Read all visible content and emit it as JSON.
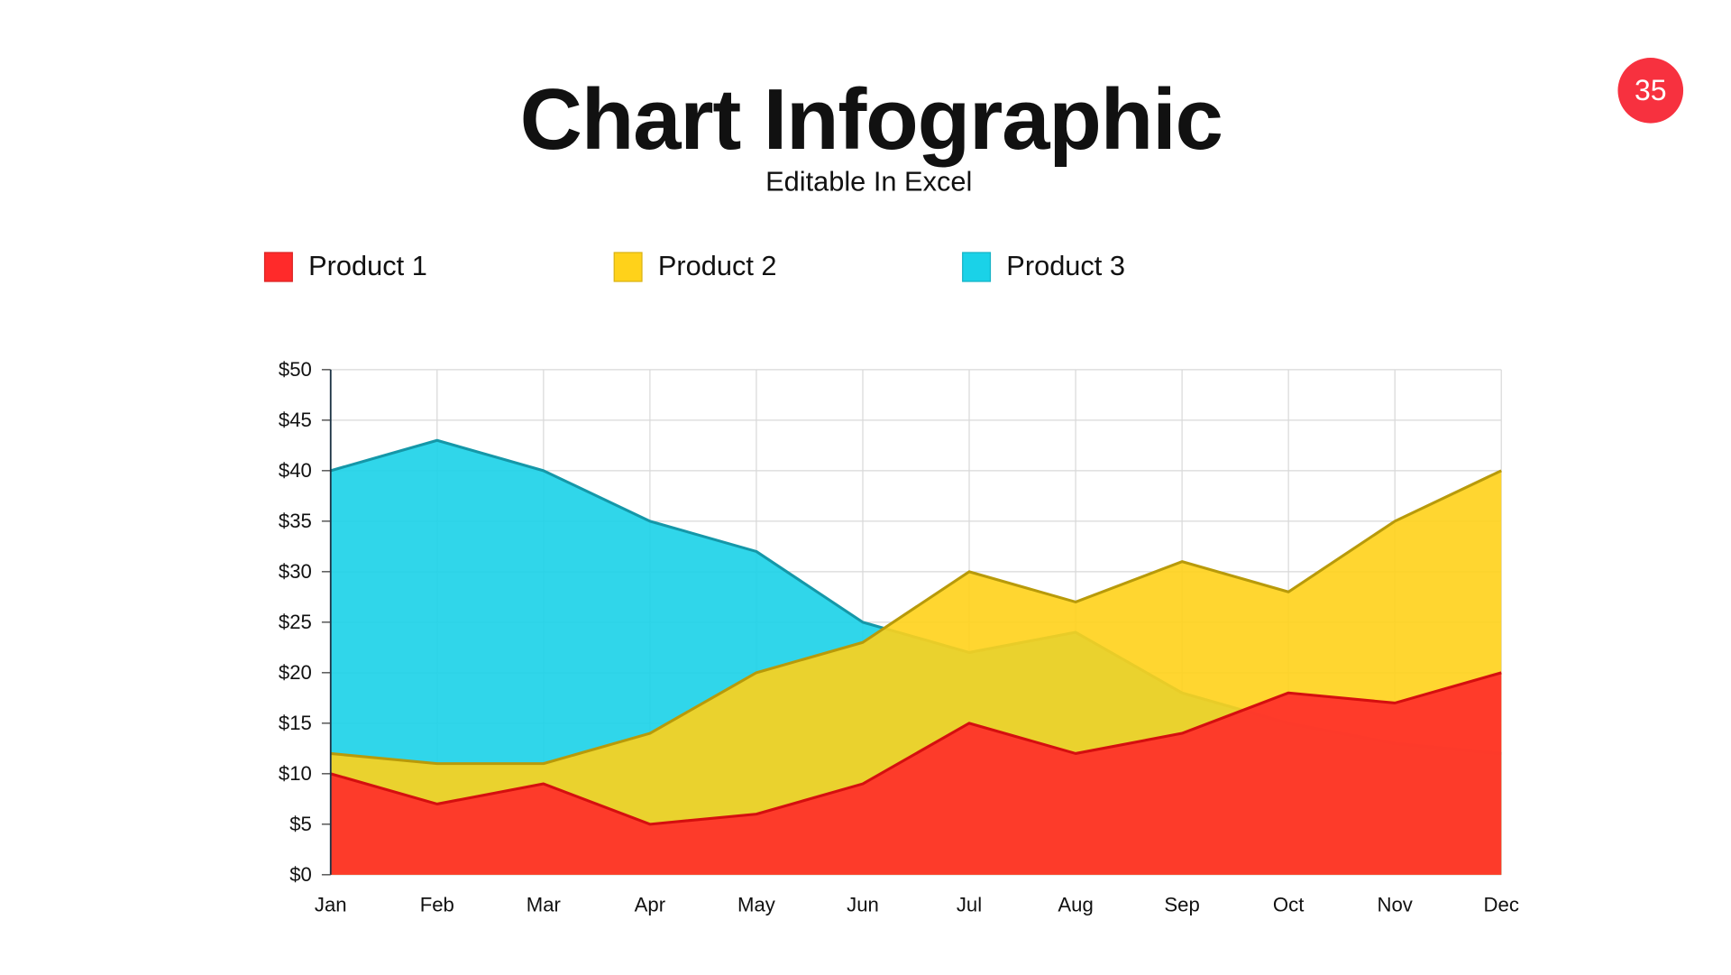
{
  "header": {
    "title": "Chart Infographic",
    "subtitle": "Editable In Excel",
    "page_number": "35"
  },
  "colors": {
    "accent": "#f7313f",
    "product1": "#ff2a2a",
    "product2": "#ffd21a",
    "product3": "#1ad2e8"
  },
  "chart_data": {
    "type": "area",
    "categories": [
      "Jan",
      "Feb",
      "Mar",
      "Apr",
      "May",
      "Jun",
      "Jul",
      "Aug",
      "Sep",
      "Oct",
      "Nov",
      "Dec"
    ],
    "series": [
      {
        "name": "Product 1",
        "color": "#ff2a2a",
        "values": [
          10,
          7,
          9,
          5,
          6,
          9,
          15,
          12,
          14,
          18,
          17,
          20
        ]
      },
      {
        "name": "Product 2",
        "color": "#ffd21a",
        "values": [
          12,
          11,
          11,
          14,
          20,
          23,
          30,
          27,
          31,
          28,
          35,
          40
        ]
      },
      {
        "name": "Product 3",
        "color": "#1ad2e8",
        "values": [
          40,
          43,
          40,
          35,
          32,
          25,
          22,
          24,
          18,
          15,
          13,
          12
        ]
      }
    ],
    "yticks": [
      "$0",
      "$5",
      "$10",
      "$15",
      "$20",
      "$25",
      "$30",
      "$35",
      "$40",
      "$45",
      "$50"
    ],
    "ylim": [
      0,
      50
    ],
    "grid": true,
    "legend": "top-left"
  }
}
